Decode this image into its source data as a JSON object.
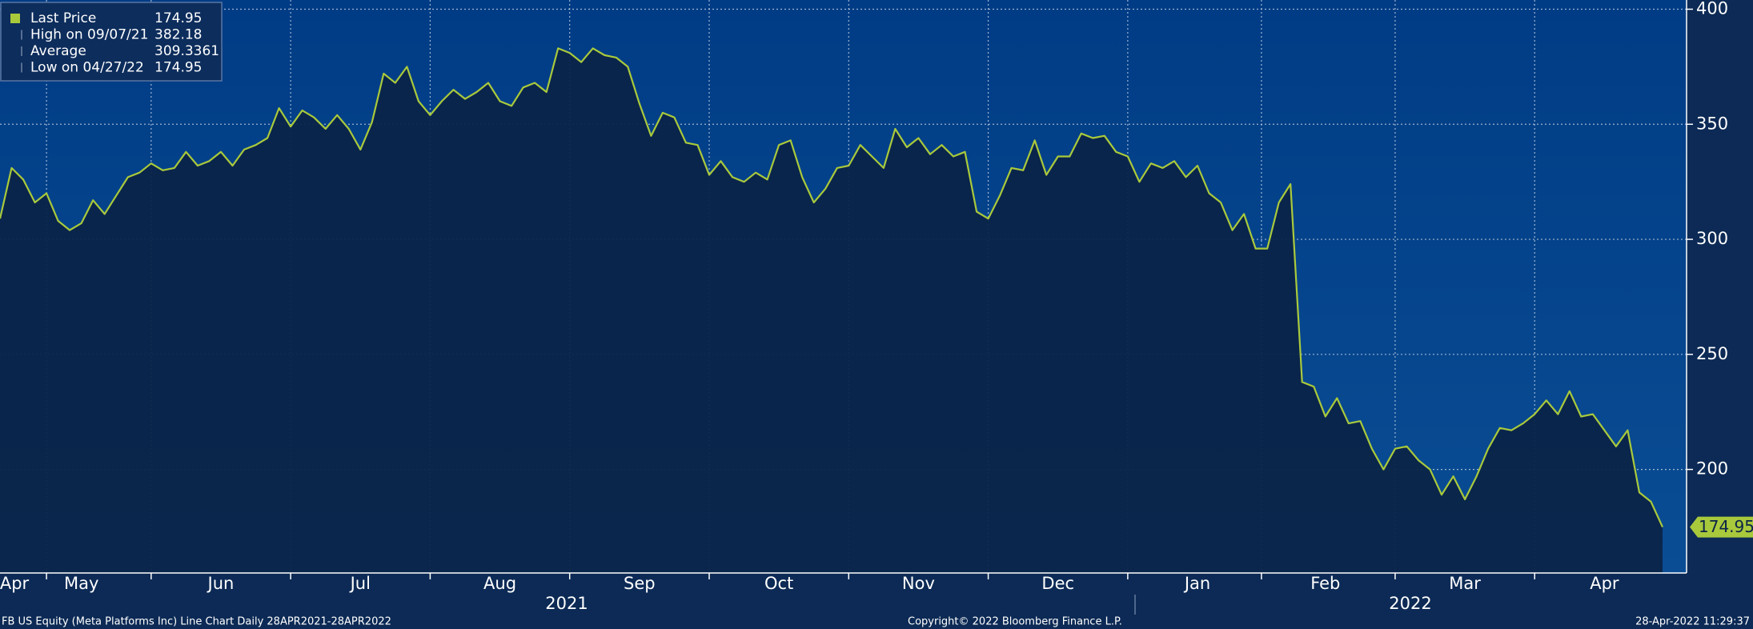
{
  "chart_data": {
    "type": "line",
    "categories": [
      null,
      "Apr",
      null,
      null,
      null,
      null,
      null,
      "May",
      null,
      null,
      null,
      null,
      null,
      null,
      null,
      null,
      null,
      null,
      null,
      "Jun",
      null,
      null,
      null,
      null,
      null,
      null,
      null,
      null,
      null,
      null,
      null,
      "Jul",
      null,
      null,
      null,
      null,
      null,
      null,
      null,
      null,
      null,
      null,
      null,
      "Aug",
      null,
      null,
      null,
      null,
      null,
      null,
      null,
      null,
      null,
      null,
      null,
      "Sep",
      null,
      null,
      null,
      null,
      null,
      null,
      null,
      null,
      null,
      null,
      null,
      "Oct",
      null,
      null,
      null,
      null,
      null,
      null,
      null,
      null,
      null,
      null,
      null,
      "Nov",
      null,
      null,
      null,
      null,
      null,
      null,
      null,
      null,
      null,
      null,
      null,
      "Dec",
      null,
      null,
      null,
      null,
      null,
      null,
      null,
      null,
      null,
      null,
      null,
      "Jan",
      null,
      null,
      null,
      null,
      null,
      null,
      null,
      null,
      null,
      null,
      "Feb",
      null,
      null,
      null,
      null,
      null,
      null,
      null,
      null,
      null,
      null,
      null,
      "Mar",
      null,
      null,
      null,
      null,
      null,
      null,
      null,
      null,
      null,
      null,
      null,
      "Apr",
      null,
      null,
      null,
      null,
      null
    ],
    "series": [
      {
        "name": "Last Price",
        "color": "#a9c93c",
        "values": [
          309,
          331,
          326,
          316,
          320,
          308,
          304,
          307,
          317,
          311,
          319,
          327,
          329,
          333,
          330,
          331,
          338,
          332,
          334,
          338,
          332,
          339,
          341,
          344,
          357,
          349,
          356,
          353,
          348,
          354,
          348,
          339,
          351,
          372,
          368,
          375,
          360,
          354,
          360,
          365,
          361,
          364,
          368,
          360,
          358,
          366,
          368,
          364,
          383,
          381,
          377,
          383,
          380,
          379,
          375,
          359,
          345,
          355,
          353,
          342,
          341,
          328,
          334,
          327,
          325,
          329,
          326,
          341,
          343,
          327,
          316,
          322,
          331,
          332,
          341,
          336,
          331,
          348,
          340,
          344,
          337,
          341,
          336,
          338,
          312,
          309,
          319,
          331,
          330,
          343,
          328,
          336,
          336,
          346,
          344,
          345,
          338,
          336,
          325,
          333,
          331,
          334,
          327,
          332,
          320,
          316,
          304,
          311,
          296,
          296,
          316,
          324,
          238,
          236,
          223,
          231,
          220,
          221,
          209,
          200,
          209,
          210,
          204,
          200,
          189,
          197,
          187,
          197,
          209,
          218,
          217,
          220,
          224,
          230,
          224,
          234,
          223,
          224,
          217,
          210,
          217,
          190,
          186,
          174.95
        ]
      }
    ],
    "stats": [
      {
        "label": "High on 09/07/21",
        "value": 382.18
      },
      {
        "label": "Average",
        "value": 309.3361
      },
      {
        "label": "Low on 04/27/22",
        "value": 174.95
      }
    ],
    "year_labels": [
      "2021",
      "2022"
    ],
    "ylim": [
      155,
      404
    ],
    "yticks": [
      200,
      250,
      300,
      350,
      400
    ],
    "grid": true,
    "footer": {
      "left": "FB US Equity (Meta Platforms Inc) Line Chart  Daily 28APR2021-28APR2022",
      "center": "Copyright© 2022 Bloomberg Finance L.P.",
      "right": "28-Apr-2022 11:29:37"
    }
  }
}
